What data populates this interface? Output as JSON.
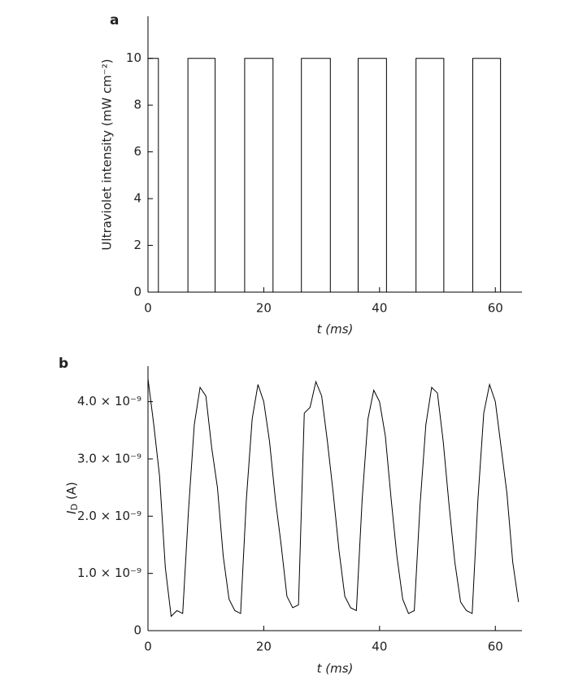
{
  "chart_data": [
    {
      "type": "line",
      "panel_label": "a",
      "xlabel": "t (ms)",
      "ylabel": "Ultraviolet intensity (mW cm⁻²)",
      "x": [
        0,
        1.8,
        1.8,
        6.9,
        6.9,
        11.6,
        11.6,
        16.7,
        16.7,
        21.6,
        21.6,
        26.5,
        26.5,
        31.5,
        31.5,
        36.3,
        36.3,
        41.2,
        41.2,
        46.3,
        46.3,
        51.1,
        51.1,
        56.1,
        56.1,
        60.9,
        60.9,
        64.5
      ],
      "values": [
        10,
        10,
        0,
        0,
        10,
        10,
        0,
        0,
        10,
        10,
        0,
        0,
        10,
        10,
        0,
        0,
        10,
        10,
        0,
        0,
        10,
        10,
        0,
        0,
        10,
        10,
        0,
        0
      ],
      "color": "#000000",
      "xlim": [
        0,
        64.6
      ],
      "ylim": [
        0,
        11.8
      ],
      "xticks": [
        0,
        20,
        40,
        60
      ],
      "yticks": [
        0,
        2,
        4,
        6,
        8,
        10
      ]
    },
    {
      "type": "line",
      "panel_label": "b",
      "xlabel": "t (ms)",
      "ylabel": {
        "symbol": "I",
        "subscript": "D",
        "unit": " (A)"
      },
      "x": [
        0,
        1,
        2,
        3,
        4,
        5,
        6,
        7,
        8,
        9,
        10,
        11,
        12,
        13,
        14,
        15,
        16,
        17,
        18,
        19,
        20,
        21,
        22,
        23,
        24,
        25,
        26,
        27,
        28,
        29,
        30,
        31,
        32,
        33,
        34,
        35,
        36,
        37,
        38,
        39,
        40,
        41,
        42,
        43,
        44,
        45,
        46,
        47,
        48,
        49,
        50,
        51,
        52,
        53,
        54,
        55,
        56,
        57,
        58,
        59,
        60,
        61,
        62,
        63,
        64
      ],
      "values": [
        4.4e-09,
        3.6e-09,
        2.7e-09,
        1.1e-09,
        2.5e-10,
        3.5e-10,
        3e-10,
        2.1e-09,
        3.6e-09,
        4.25e-09,
        4.1e-09,
        3.2e-09,
        2.5e-09,
        1.3e-09,
        5.5e-10,
        3.5e-10,
        3e-10,
        2.3e-09,
        3.7e-09,
        4.3e-09,
        4e-09,
        3.3e-09,
        2.3e-09,
        1.5e-09,
        6e-10,
        4e-10,
        4.5e-10,
        3.8e-09,
        3.9e-09,
        4.35e-09,
        4.1e-09,
        3.3e-09,
        2.4e-09,
        1.4e-09,
        6e-10,
        4e-10,
        3.5e-10,
        2.3e-09,
        3.7e-09,
        4.2e-09,
        4e-09,
        3.4e-09,
        2.3e-09,
        1.3e-09,
        5.5e-10,
        3e-10,
        3.5e-10,
        2.2e-09,
        3.6e-09,
        4.25e-09,
        4.15e-09,
        3.3e-09,
        2.2e-09,
        1.2e-09,
        5e-10,
        3.5e-10,
        3e-10,
        2.3e-09,
        3.8e-09,
        4.3e-09,
        4e-09,
        3.2e-09,
        2.4e-09,
        1.2e-09,
        5e-10
      ],
      "color": "#000000",
      "xlim": [
        0,
        64.6
      ],
      "ylim": [
        0,
        4.62e-09
      ],
      "xticks": [
        0,
        20,
        40,
        60
      ],
      "yticks": [
        0,
        {
          "value": 1e-09,
          "label": "1.0 × 10⁻⁹"
        },
        {
          "value": 2e-09,
          "label": "2.0 × 10⁻⁹"
        },
        {
          "value": 3e-09,
          "label": "3.0 × 10⁻⁹"
        },
        {
          "value": 4e-09,
          "label": "4.0 × 10⁻⁹"
        }
      ]
    }
  ]
}
